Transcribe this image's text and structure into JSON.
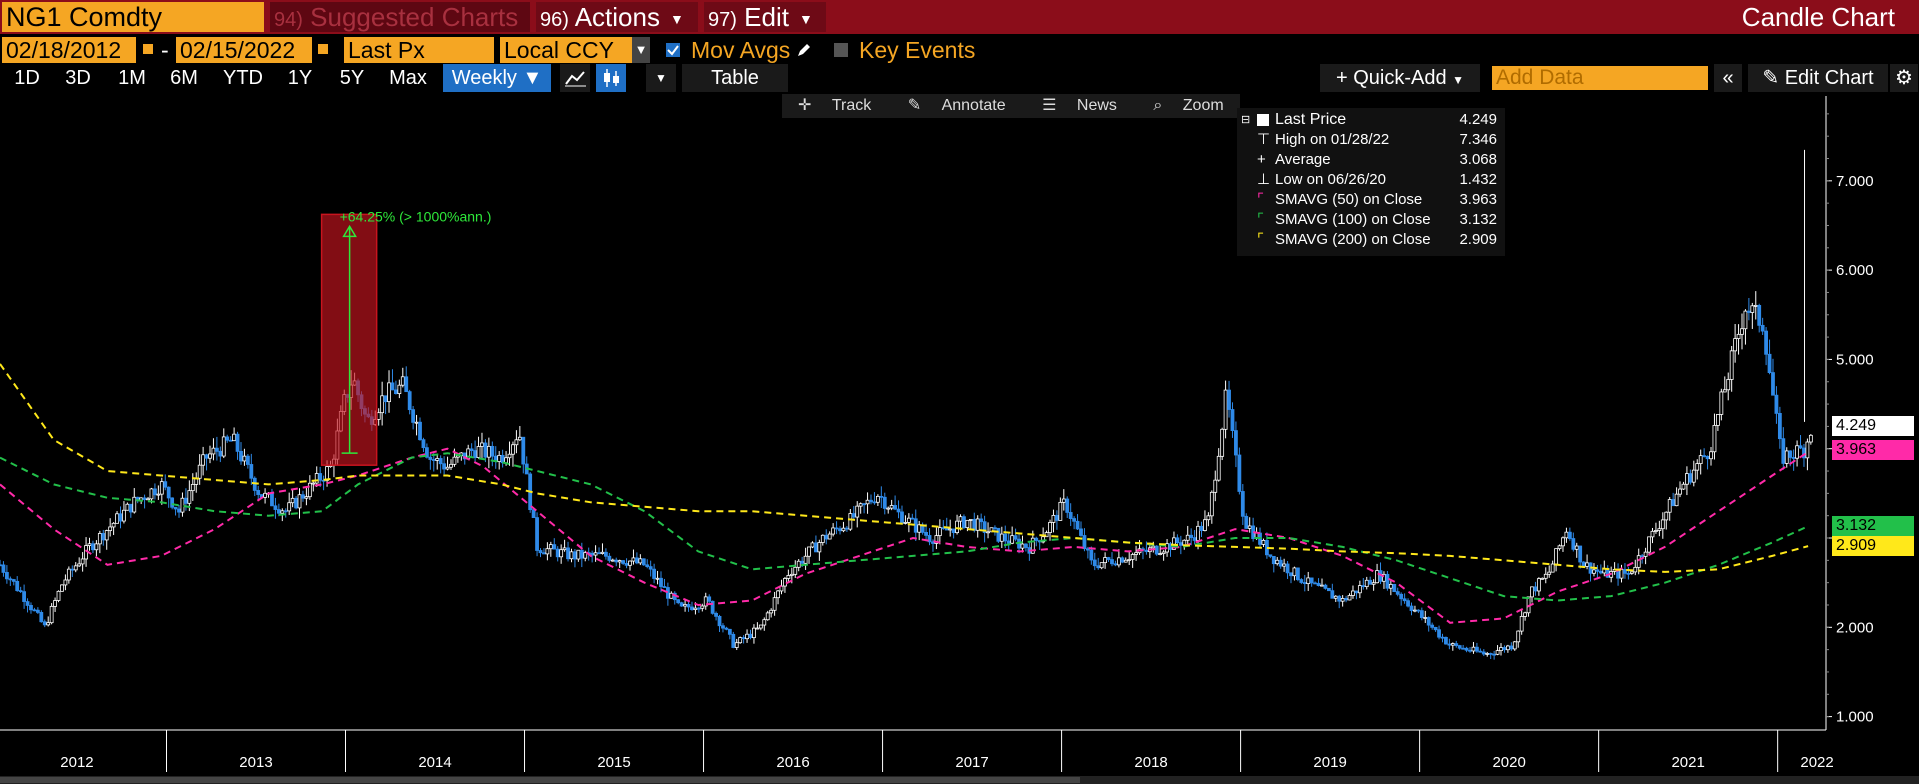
{
  "header": {
    "ticker": "NG1 Comdty",
    "suggested_num": "94)",
    "suggested_label": "Suggested Charts",
    "actions_num": "96)",
    "actions_label": "Actions",
    "edit_num": "97)",
    "edit_label": "Edit",
    "chart_title": "Candle Chart"
  },
  "controls": {
    "start_date": "02/18/2012",
    "date_sep": "-",
    "end_date": "02/15/2022",
    "field": "Last Px",
    "currency": "Local CCY",
    "mov_avgs_label": "Mov Avgs",
    "mov_avgs_checked": true,
    "key_events_label": "Key Events",
    "key_events_checked": false
  },
  "toolbar": {
    "periods": [
      "1D",
      "3D",
      "1M",
      "6M",
      "YTD",
      "1Y",
      "5Y",
      "Max"
    ],
    "frequency": "Weekly",
    "table_label": "Table",
    "quick_add_label": "Quick-Add",
    "add_data_placeholder": "Add Data",
    "edit_chart_label": "Edit Chart"
  },
  "chart_tools": {
    "track": "Track",
    "annotate": "Annotate",
    "news": "News",
    "zoom": "Zoom"
  },
  "legend": {
    "last_price_label": "Last Price",
    "last_price_value": "4.249",
    "high_label": "High on 01/28/22",
    "high_value": "7.346",
    "average_label": "Average",
    "average_value": "3.068",
    "low_label": "Low on 06/26/20",
    "low_value": "1.432",
    "sma50_label": "SMAVG (50)  on Close",
    "sma50_value": "3.963",
    "sma100_label": "SMAVG (100)  on Close",
    "sma100_value": "3.132",
    "sma200_label": "SMAVG (200)  on Close",
    "sma200_value": "2.909"
  },
  "annotation": {
    "text": "+64.25% (> 1000%ann.)",
    "from_value": 3.95,
    "to_value": 6.49,
    "x_from": 2013.83,
    "x_to": 2013.97
  },
  "axis_tags": {
    "last": "4.249",
    "sma50": "3.963",
    "sma100": "3.132",
    "sma200": "2.909"
  },
  "colors": {
    "sma50": "#ff2aa8",
    "sma100": "#22c04a",
    "sma200": "#ffe81a",
    "up_candle": "#ffffff",
    "down_candle": "#2f8ae8",
    "accent_orange": "#f5a623",
    "brand_red": "#8b0d1a"
  },
  "chart_data": {
    "type": "line",
    "title": "",
    "frequency": "Weekly",
    "y_ticks": [
      "1.000",
      "2.000",
      "3.000",
      "4.000",
      "5.000",
      "6.000",
      "7.000"
    ],
    "x_ticks": [
      "2012",
      "2013",
      "2014",
      "2015",
      "2016",
      "2017",
      "2018",
      "2019",
      "2020",
      "2021",
      "2022"
    ],
    "ylim": [
      0.85,
      7.95
    ],
    "xlim": [
      2012.0,
      2022.2
    ],
    "grid": false,
    "legend_position": "top-right",
    "series": [
      {
        "name": "Last Price",
        "x": [
          2012.0,
          2012.15,
          2012.25,
          2012.35,
          2012.5,
          2012.6,
          2012.75,
          2012.9,
          2013.0,
          2013.15,
          2013.3,
          2013.45,
          2013.6,
          2013.75,
          2013.85,
          2013.92,
          2013.97,
          2014.05,
          2014.15,
          2014.25,
          2014.4,
          2014.5,
          2014.65,
          2014.8,
          2014.9,
          2015.0,
          2015.2,
          2015.4,
          2015.6,
          2015.8,
          2015.95,
          2016.1,
          2016.25,
          2016.4,
          2016.5,
          2016.6,
          2016.75,
          2016.9,
          2017.0,
          2017.2,
          2017.4,
          2017.6,
          2017.75,
          2017.85,
          2017.95,
          2018.1,
          2018.3,
          2018.5,
          2018.65,
          2018.75,
          2018.85,
          2018.95,
          2019.1,
          2019.3,
          2019.5,
          2019.7,
          2019.85,
          2020.0,
          2020.1,
          2020.3,
          2020.45,
          2020.55,
          2020.65,
          2020.75,
          2020.85,
          2020.95,
          2021.1,
          2021.25,
          2021.4,
          2021.55,
          2021.65,
          2021.75,
          2021.85,
          2021.95,
          2022.08,
          2022.12
        ],
        "values": [
          2.7,
          2.3,
          2.0,
          2.5,
          2.9,
          3.1,
          3.4,
          3.6,
          3.3,
          3.9,
          4.1,
          3.5,
          3.3,
          3.6,
          3.8,
          4.5,
          4.8,
          4.3,
          4.6,
          4.7,
          3.9,
          3.8,
          4.0,
          3.9,
          4.2,
          2.9,
          2.8,
          2.8,
          2.7,
          2.2,
          2.3,
          1.8,
          2.0,
          2.6,
          2.8,
          3.0,
          3.2,
          3.5,
          3.3,
          3.0,
          3.2,
          3.0,
          2.9,
          3.1,
          3.4,
          2.7,
          2.8,
          2.9,
          3.0,
          3.2,
          4.6,
          3.2,
          2.8,
          2.5,
          2.3,
          2.6,
          2.3,
          2.0,
          1.8,
          1.7,
          1.8,
          2.4,
          2.6,
          3.1,
          2.7,
          2.6,
          2.6,
          3.1,
          3.6,
          4.0,
          4.8,
          5.6,
          5.4,
          3.9,
          4.0,
          4.25
        ]
      },
      {
        "name": "SMAVG (50)  on Close",
        "x": [
          2012.0,
          2012.3,
          2012.6,
          2012.9,
          2013.2,
          2013.5,
          2013.8,
          2014.0,
          2014.3,
          2014.5,
          2014.7,
          2015.0,
          2015.3,
          2015.6,
          2015.9,
          2016.2,
          2016.5,
          2016.8,
          2017.1,
          2017.4,
          2017.7,
          2018.0,
          2018.3,
          2018.6,
          2018.9,
          2019.2,
          2019.5,
          2019.8,
          2020.1,
          2020.4,
          2020.7,
          2021.0,
          2021.3,
          2021.6,
          2021.9,
          2022.1
        ],
        "values": [
          3.6,
          3.1,
          2.7,
          2.8,
          3.1,
          3.5,
          3.6,
          3.7,
          3.9,
          4.0,
          3.8,
          3.3,
          2.8,
          2.5,
          2.25,
          2.3,
          2.6,
          2.8,
          3.0,
          2.9,
          2.85,
          2.9,
          2.85,
          2.9,
          3.1,
          3.0,
          2.8,
          2.5,
          2.05,
          2.1,
          2.4,
          2.6,
          2.9,
          3.3,
          3.7,
          3.963
        ]
      },
      {
        "name": "SMAVG (100)  on Close",
        "x": [
          2012.0,
          2012.3,
          2012.6,
          2012.9,
          2013.2,
          2013.5,
          2013.8,
          2014.0,
          2014.3,
          2014.5,
          2014.8,
          2015.0,
          2015.3,
          2015.6,
          2015.9,
          2016.2,
          2016.5,
          2016.8,
          2017.1,
          2017.4,
          2017.7,
          2018.0,
          2018.3,
          2018.6,
          2018.9,
          2019.2,
          2019.5,
          2019.8,
          2020.1,
          2020.4,
          2020.7,
          2021.0,
          2021.3,
          2021.6,
          2021.9,
          2022.1
        ],
        "values": [
          3.9,
          3.6,
          3.45,
          3.4,
          3.3,
          3.25,
          3.3,
          3.6,
          3.9,
          3.95,
          3.85,
          3.75,
          3.6,
          3.3,
          2.85,
          2.65,
          2.7,
          2.75,
          2.8,
          2.85,
          2.95,
          3.0,
          2.95,
          2.9,
          3.0,
          3.0,
          2.9,
          2.75,
          2.55,
          2.35,
          2.3,
          2.35,
          2.5,
          2.7,
          2.95,
          3.132
        ]
      },
      {
        "name": "SMAVG (200)  on Close",
        "x": [
          2012.0,
          2012.3,
          2012.6,
          2012.9,
          2013.2,
          2013.5,
          2013.8,
          2014.0,
          2014.3,
          2014.5,
          2014.8,
          2015.0,
          2015.3,
          2015.6,
          2015.9,
          2016.2,
          2016.5,
          2016.8,
          2017.1,
          2017.4,
          2017.7,
          2018.0,
          2018.3,
          2018.6,
          2018.9,
          2019.2,
          2019.5,
          2019.8,
          2020.1,
          2020.4,
          2020.7,
          2021.0,
          2021.3,
          2021.6,
          2021.9,
          2022.1
        ],
        "values": [
          4.95,
          4.1,
          3.75,
          3.7,
          3.65,
          3.6,
          3.65,
          3.7,
          3.7,
          3.7,
          3.6,
          3.5,
          3.4,
          3.35,
          3.3,
          3.3,
          3.25,
          3.2,
          3.15,
          3.1,
          3.05,
          3.0,
          2.95,
          2.92,
          2.9,
          2.88,
          2.85,
          2.83,
          2.8,
          2.75,
          2.7,
          2.65,
          2.62,
          2.65,
          2.8,
          2.909
        ]
      }
    ]
  }
}
